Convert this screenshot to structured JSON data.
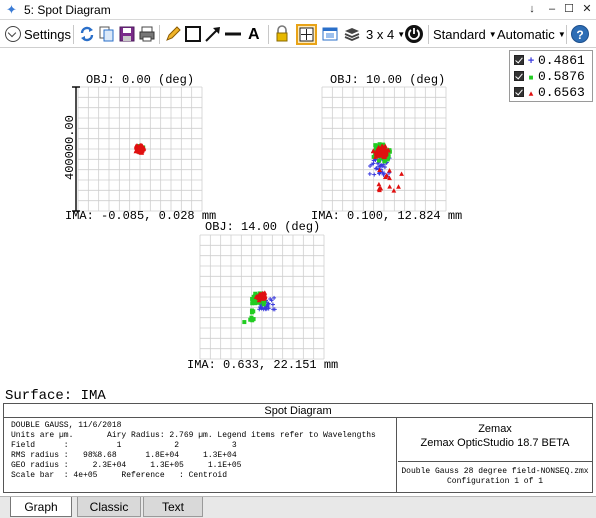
{
  "window": {
    "title": "5: Spot Diagram",
    "minimize": "‒",
    "restore": "☐",
    "close": "✕",
    "pin": "↓"
  },
  "toolbar": {
    "settings_label": "Settings",
    "layout_label": "3 x 4",
    "standard_label": "Standard",
    "automatic_label": "Automatic",
    "help_label": "?",
    "text_tool_label": "A"
  },
  "plots": [
    {
      "field": "OBJ: 0.00 (deg)",
      "ima": "IMA: -0.085, 0.028 mm"
    },
    {
      "field": "OBJ: 10.00 (deg)",
      "ima": "IMA: 0.100, 12.824 mm"
    },
    {
      "field": "OBJ: 14.00 (deg)",
      "ima": "IMA: 0.633, 22.151 mm"
    }
  ],
  "scale_bar_label": "400000.00",
  "legend": [
    {
      "wavelength": "0.4861",
      "symbol": "+",
      "color": "#3a3adf"
    },
    {
      "wavelength": "0.5876",
      "symbol": "■",
      "color": "#22cc22"
    },
    {
      "wavelength": "0.6563",
      "symbol": "▲",
      "color": "#e01010"
    }
  ],
  "surface_label": "Surface: IMA",
  "info": {
    "title": "Spot Diagram",
    "lines": [
      "DOUBLE GAUSS, 11/6/2018",
      "Units are µm.       Airy Radius: 2.769 µm. Legend items refer to Wavelengths",
      "Field      :          1           2           3",
      "RMS radius :   98%8.68      1.8E+04     1.3E+04",
      "GEO radius :     2.3E+04     1.3E+05     1.1E+05",
      "Scale bar  : 4e+05     Reference   : Centroid"
    ],
    "company": "Zemax",
    "product": "Zemax OpticStudio 18.7  BETA",
    "file": "Double Gauss 28 degree field-NONSEQ.zmx",
    "configuration": "Configuration 1 of 1"
  },
  "tabs": [
    {
      "label": "Graph",
      "active": true
    },
    {
      "label": "Classic",
      "active": false
    },
    {
      "label": "Text",
      "active": false
    }
  ],
  "colors": {
    "blue": "#3a3adf",
    "green": "#22cc22",
    "red": "#e01010",
    "accent": "#e8a317"
  }
}
